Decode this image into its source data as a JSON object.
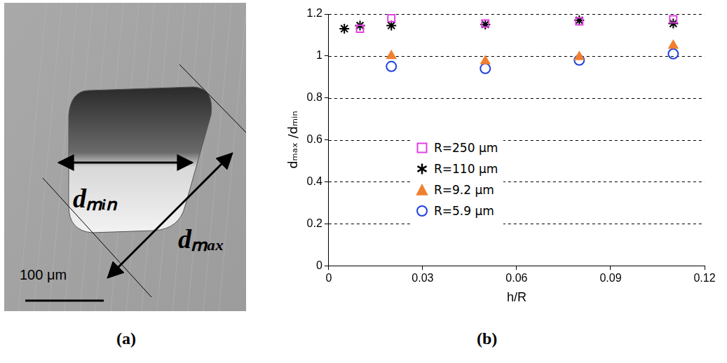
{
  "panel_labels": [
    "(a)",
    "(b)"
  ],
  "image_panel": {
    "dimension_labels": [
      "dₘᵢₙ",
      "dₘₐₓ"
    ],
    "scale_bar": "100 μm"
  },
  "chart_data": {
    "type": "scatter",
    "x_label": "h/R",
    "y_label": "dₘₐₓ /dₘᵢₙ",
    "xlim": [
      0,
      0.12
    ],
    "xticks": [
      0,
      0.03,
      0.06,
      0.09,
      0.12
    ],
    "ylim": [
      0,
      1.2
    ],
    "yticks": [
      0,
      0.2,
      0.4,
      0.6,
      0.8,
      1,
      1.2
    ],
    "grid": true,
    "legend": "center",
    "series": [
      {
        "name": "R=250 μm",
        "color": "#e040e0",
        "marker": "open_square",
        "x": [
          0.01,
          0.02,
          0.05,
          0.08,
          0.11
        ],
        "values": [
          1.13,
          1.18,
          1.155,
          1.165,
          1.175
        ]
      },
      {
        "name": "R=110 μm",
        "color": "#000000",
        "marker": "star",
        "x": [
          0.005,
          0.01,
          0.02,
          0.05,
          0.08,
          0.11
        ],
        "values": [
          1.13,
          1.145,
          1.145,
          1.15,
          1.17,
          1.155
        ]
      },
      {
        "name": "R=9.2 μm",
        "color": "#f08030",
        "marker": "filled_triangle",
        "x": [
          0.02,
          0.05,
          0.08,
          0.11
        ],
        "values": [
          1.0,
          0.975,
          0.995,
          1.05
        ]
      },
      {
        "name": "R=5.9 μm",
        "color": "#2040e0",
        "marker": "open_circle",
        "x": [
          0.02,
          0.05,
          0.08,
          0.11
        ],
        "values": [
          0.95,
          0.94,
          0.98,
          1.01
        ]
      }
    ]
  }
}
